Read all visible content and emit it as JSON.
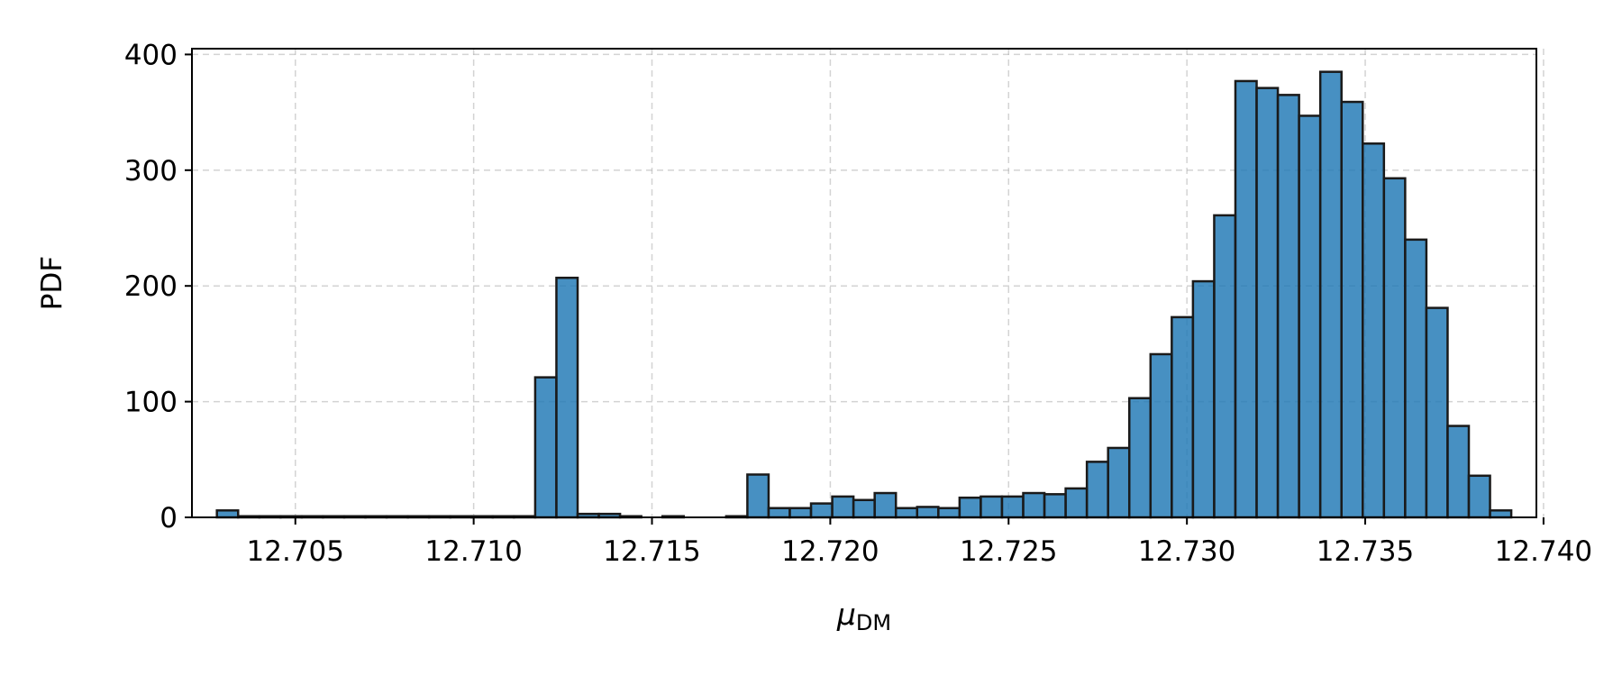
{
  "chart_data": {
    "type": "bar",
    "title": "",
    "xlabel": "μ",
    "xlabel_sub": "DM",
    "ylabel": "PDF",
    "xlim": [
      12.7021,
      12.7398
    ],
    "ylim": [
      0,
      405
    ],
    "xticks": [
      "12.705",
      "12.710",
      "12.715",
      "12.720",
      "12.725",
      "12.730",
      "12.735",
      "12.740"
    ],
    "xtick_values": [
      12.705,
      12.71,
      12.715,
      12.72,
      12.725,
      12.73,
      12.735,
      12.74
    ],
    "yticks": [
      "0",
      "100",
      "200",
      "300",
      "400"
    ],
    "ytick_values": [
      0,
      100,
      200,
      300,
      400
    ],
    "grid": true,
    "bar_color": "#1f77b4",
    "edge_color": "#1a1a1a",
    "bin_start": 12.7028,
    "bin_width": 0.000595,
    "values": [
      6,
      1,
      1,
      1,
      1,
      1,
      1,
      1,
      1,
      1,
      1,
      1,
      1,
      1,
      1,
      121,
      207,
      3,
      3,
      1,
      0,
      1,
      0,
      0,
      1,
      37,
      8,
      8,
      12,
      18,
      15,
      21,
      8,
      9,
      8,
      17,
      18,
      18,
      21,
      20,
      25,
      48,
      60,
      103,
      141,
      173,
      204,
      261,
      377,
      371,
      365,
      347,
      385,
      359,
      323,
      293,
      240,
      181,
      79,
      36,
      6
    ]
  }
}
